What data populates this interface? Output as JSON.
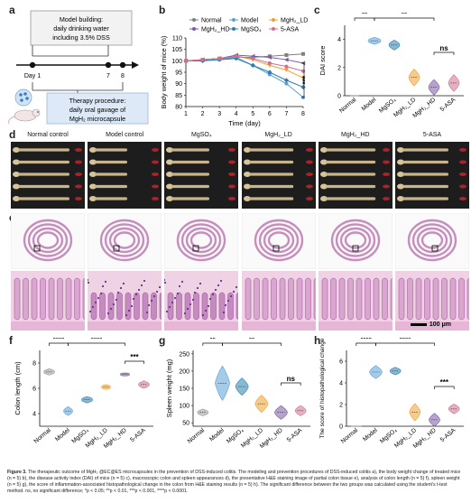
{
  "panel_a": {
    "label": "a",
    "box1_line1": "Model building:",
    "box1_line2": "daily drinking water",
    "box1_line3": "including 3.5% DSS",
    "day1": "Day 1",
    "day7": "7",
    "day8": "8",
    "box2_line1": "Therapy procedure:",
    "box2_line2": "daily oral gavage of",
    "box2_line3": "MgH₂ microcapsule"
  },
  "panel_b": {
    "label": "b"
  },
  "panel_c": {
    "label": "c"
  },
  "panel_d": {
    "label": "d",
    "groups": [
      "Normal control",
      "Model control",
      "MgSO₄",
      "MgH₂_LD",
      "MgH₂_HD",
      "5-ASA"
    ]
  },
  "panel_e": {
    "label": "e",
    "scale_bar": "100 μm"
  },
  "panel_f": {
    "label": "f"
  },
  "panel_g": {
    "label": "g"
  },
  "panel_h": {
    "label": "h"
  },
  "colors": {
    "Normal": "#7f7f7f",
    "Model": "#5aa0d8",
    "MgH2_LD": "#f0a030",
    "MgH2_HD": "#7a5aa6",
    "MgSO4": "#2a7fb0",
    "5-ASA": "#d07090"
  },
  "chart_data": [
    {
      "panel": "b",
      "type": "line",
      "xlabel": "Time (day)",
      "ylabel": "Body weight of mice (%)",
      "x": [
        1,
        2,
        3,
        4,
        5,
        6,
        7,
        8
      ],
      "xlim": [
        1,
        8
      ],
      "ylim": [
        80,
        110
      ],
      "yticks": [
        80,
        85,
        90,
        95,
        100,
        105,
        110
      ],
      "legend": "top",
      "significance": "***",
      "series": [
        {
          "name": "Normal",
          "color": "#7f7f7f",
          "marker": "square",
          "values": [
            100,
            100.5,
            101,
            101.5,
            101.5,
            102,
            102.5,
            103
          ]
        },
        {
          "name": "Model",
          "color": "#5aa0d8",
          "marker": "circle",
          "values": [
            100,
            100,
            100.5,
            101.5,
            98,
            94,
            90,
            84
          ]
        },
        {
          "name": "MgH₂_LD",
          "color": "#f0a030",
          "marker": "tri-down",
          "values": [
            100,
            100.5,
            101,
            102,
            100.5,
            98,
            96,
            92.5
          ]
        },
        {
          "name": "MgH₂_HD",
          "color": "#7a5aa6",
          "marker": "tri-left",
          "values": [
            100,
            100.5,
            101,
            102.5,
            102,
            101.5,
            100.5,
            99
          ]
        },
        {
          "name": "MgSO₄",
          "color": "#2a7fb0",
          "marker": "diamond",
          "values": [
            100,
            100,
            100.5,
            101,
            98,
            95,
            91.5,
            88.5
          ]
        },
        {
          "name": "5-ASA",
          "color": "#d07090",
          "marker": "star",
          "values": [
            100,
            100.5,
            101,
            102,
            101,
            99,
            97.5,
            95.5
          ]
        }
      ]
    },
    {
      "panel": "c",
      "type": "violin",
      "ylabel": "DAI score",
      "ylim": [
        0,
        5
      ],
      "yticks": [
        0,
        2,
        4
      ],
      "categories": [
        "Normal",
        "Model",
        "MgSO₄",
        "MgH₂_LD",
        "MgH₂_HD",
        "5-ASA"
      ],
      "values": [
        0,
        3.9,
        3.6,
        1.3,
        0.6,
        0.9
      ],
      "annotations": [
        "**",
        "**",
        "ns"
      ]
    },
    {
      "panel": "f",
      "type": "violin",
      "ylabel": "Colon length (cm)",
      "ylim": [
        3,
        9
      ],
      "yticks": [
        4,
        6,
        8
      ],
      "categories": [
        "Normal",
        "Model",
        "MgSO₄",
        "MgH₂_LD",
        "MgH₂_HD",
        "5-ASA"
      ],
      "values": [
        7.3,
        4.2,
        5.1,
        6.1,
        7.1,
        6.3
      ],
      "annotations": [
        "****",
        "****",
        "***"
      ]
    },
    {
      "panel": "g",
      "type": "violin",
      "ylabel": "Spleen weight (mg)",
      "ylim": [
        40,
        260
      ],
      "yticks": [
        50,
        100,
        150,
        200,
        250
      ],
      "categories": [
        "Normal",
        "Model",
        "MgSO₄",
        "MgH₂_LD",
        "MgH₂_HD",
        "5-ASA"
      ],
      "values": [
        80,
        165,
        155,
        105,
        80,
        85
      ],
      "annotations": [
        "**",
        "**",
        "ns"
      ]
    },
    {
      "panel": "h",
      "type": "violin",
      "ylabel": "The score of histopathological change",
      "ylim": [
        0,
        7
      ],
      "yticks": [
        0,
        2,
        4,
        6
      ],
      "categories": [
        "Normal",
        "Model",
        "MgSO₄",
        "MgH₂_LD",
        "MgH₂_HD",
        "5-ASA"
      ],
      "values": [
        0,
        5.0,
        5.1,
        1.3,
        0.6,
        1.6
      ],
      "annotations": [
        "****",
        "****",
        "***"
      ]
    }
  ],
  "caption": {
    "lead": "Figure 3.",
    "text": "The therapeutic outcome of MgH₂ @EC@ES microcapsules in the prevention of DSS-induced colitis. The modeling and prevention procedures of DSS-induced colitis a), the body weight change of treated mice (n = 5) b), the disease activity index (DAI) of mice (n = 5) c), macroscopic colon and spleen appearances d), the presentative H&E staining image of partial colon tissue e), analysis of colon length (n = 5) f), spleen weight (n = 5) g), the score of inflammation-associated histopathological change in the colon from H&E staining results (n = 5) h). The significant difference between the two groups was calculated using the student's t-test method. ns, no significant difference; *p < 0.05; **p < 0.01, ***p < 0.001, ****p < 0.0001."
  }
}
